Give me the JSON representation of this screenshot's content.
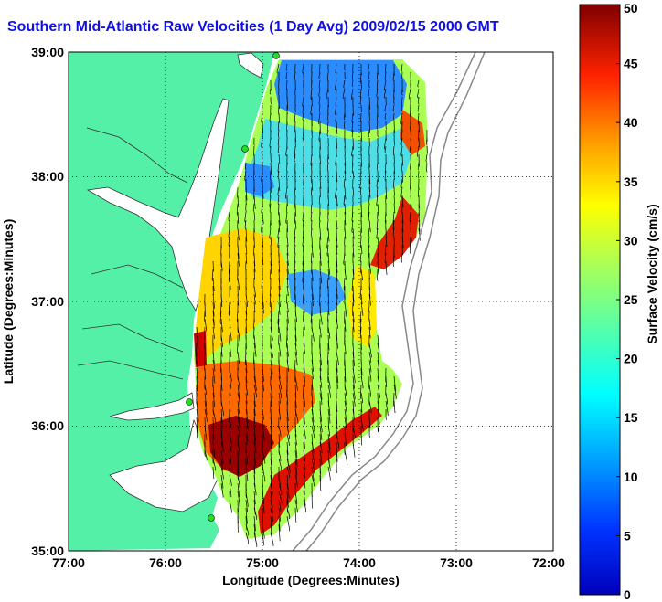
{
  "chart_data": {
    "type": "heatmap",
    "title": "Southern Mid-Atlantic Raw Velocities (1 Day Avg) 2009/02/15 2000 GMT",
    "xlabel": "Longitude (Degrees:Minutes)",
    "ylabel": "Latitude (Degrees:Minutes)",
    "xlim": [
      -77,
      -72
    ],
    "ylim": [
      35,
      39
    ],
    "x_ticks": [
      "77:00",
      "76:00",
      "75:00",
      "74:00",
      "73:00",
      "72:00"
    ],
    "y_ticks": [
      "39:00",
      "38:00",
      "37:00",
      "36:00",
      "35:00"
    ],
    "grid": true,
    "colorbar": {
      "label": "Surface Velocity (cm/s)",
      "min": 0,
      "max": 50,
      "ticks": [
        "0",
        "5",
        "10",
        "15",
        "20",
        "25",
        "30",
        "35",
        "40",
        "45",
        "50"
      ]
    },
    "colors": {
      "land": "#55f0a8",
      "coast": "#2a2a2a",
      "water": "#ffffff",
      "title": "#1010e0"
    }
  }
}
